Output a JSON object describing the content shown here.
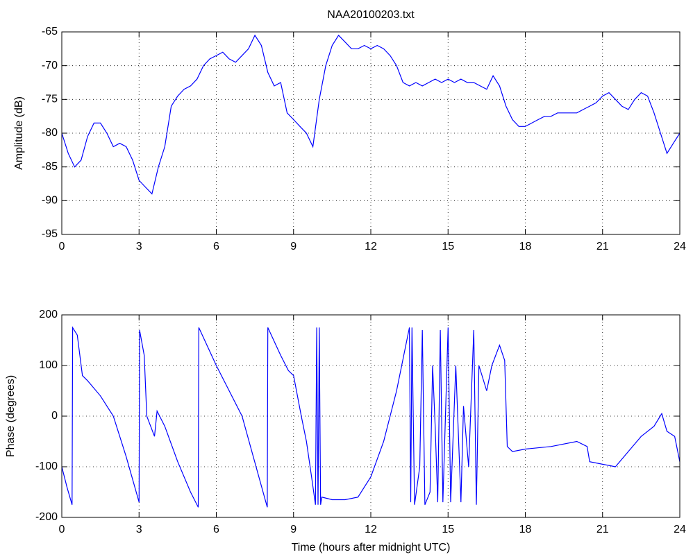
{
  "chart_data": [
    {
      "type": "line",
      "title": "NAA20100203.txt",
      "ylabel": "Amplitude (dB)",
      "color": "#0000ff",
      "grid": true,
      "x": [
        0,
        0.25,
        0.5,
        0.75,
        1,
        1.25,
        1.5,
        1.75,
        2,
        2.25,
        2.5,
        2.75,
        3,
        3.25,
        3.5,
        3.75,
        4,
        4.25,
        4.5,
        4.75,
        5,
        5.25,
        5.5,
        5.75,
        6,
        6.25,
        6.5,
        6.75,
        7,
        7.25,
        7.5,
        7.75,
        8,
        8.25,
        8.5,
        8.75,
        9,
        9.25,
        9.5,
        9.75,
        10,
        10.25,
        10.5,
        10.75,
        11,
        11.25,
        11.5,
        11.75,
        12,
        12.25,
        12.5,
        12.75,
        13,
        13.25,
        13.5,
        13.75,
        14,
        14.25,
        14.5,
        14.75,
        15,
        15.25,
        15.5,
        15.75,
        16,
        16.25,
        16.5,
        16.75,
        17,
        17.25,
        17.5,
        17.75,
        18,
        18.25,
        18.5,
        18.75,
        19,
        19.25,
        19.5,
        19.75,
        20,
        20.25,
        20.5,
        20.75,
        21,
        21.25,
        21.5,
        21.75,
        22,
        22.25,
        22.5,
        22.75,
        23,
        23.25,
        23.5,
        23.75,
        24
      ],
      "values": [
        -80,
        -83,
        -85,
        -84,
        -80.5,
        -78.5,
        -78.5,
        -80,
        -82,
        -81.5,
        -82,
        -84,
        -87,
        -88,
        -89,
        -85,
        -82,
        -76,
        -74.5,
        -73.5,
        -73,
        -72,
        -70,
        -69,
        -68.5,
        -68,
        -69,
        -69.5,
        -68.5,
        -67.5,
        -65.5,
        -67,
        -71,
        -73,
        -72.5,
        -77,
        -78,
        -79,
        -80,
        -82,
        -75,
        -70,
        -67,
        -65.5,
        -66.5,
        -67.5,
        -67.5,
        -67,
        -67.5,
        -67,
        -67.5,
        -68.5,
        -70,
        -72.5,
        -73,
        -72.5,
        -73,
        -72.5,
        -72,
        -72.5,
        -72,
        -72.5,
        -72,
        -72.5,
        -72.5,
        -73,
        -73.5,
        -71.5,
        -73,
        -76,
        -78,
        -79,
        -79,
        -78.5,
        -78,
        -77.5,
        -77.5,
        -77,
        -77,
        -77,
        -77,
        -76.5,
        -76,
        -75.5,
        -74.5,
        -74,
        -75,
        -76,
        -76.5,
        -75,
        -74,
        -74.5,
        -77,
        -80,
        -83,
        -81.5,
        -80
      ],
      "xlim": [
        0,
        24
      ],
      "xticks": [
        0,
        3,
        6,
        9,
        12,
        15,
        18,
        21,
        24
      ],
      "ylim": [
        -95,
        -65
      ],
      "yticks": [
        -95,
        -90,
        -85,
        -80,
        -75,
        -70,
        -65
      ]
    },
    {
      "type": "line",
      "xlabel": "Time (hours after midnight UTC)",
      "ylabel": "Phase (degrees)",
      "color": "#0000ff",
      "grid": true,
      "x": [
        0,
        0.2,
        0.4,
        0.42,
        0.6,
        0.8,
        1,
        1.5,
        2,
        2.5,
        3.0,
        3.02,
        3.2,
        3.3,
        3.6,
        3.7,
        4,
        4.5,
        5,
        5.3,
        5.32,
        6,
        7,
        7.98,
        8.0,
        8.5,
        8.8,
        9,
        9.3,
        9.5,
        9.7,
        9.85,
        9.9,
        9.95,
        10,
        10.05,
        10.1,
        10.5,
        11,
        11.5,
        12,
        12.5,
        13,
        13.4,
        13.5,
        13.55,
        13.6,
        13.7,
        13.9,
        14,
        14.1,
        14.3,
        14.4,
        14.5,
        14.6,
        14.7,
        14.8,
        15,
        15.1,
        15.3,
        15.5,
        15.6,
        15.8,
        16,
        16.1,
        16.2,
        16.5,
        16.7,
        17,
        17.2,
        17.3,
        17.5,
        18,
        19,
        20,
        20.4,
        20.5,
        21,
        21.5,
        22,
        22.5,
        23,
        23.3,
        23.5,
        23.8,
        24
      ],
      "values": [
        -100,
        -140,
        -175,
        175,
        160,
        80,
        70,
        40,
        0,
        -80,
        -170,
        170,
        120,
        0,
        -40,
        10,
        -20,
        -90,
        -150,
        -180,
        175,
        100,
        0,
        -180,
        175,
        120,
        90,
        80,
        0,
        -50,
        -120,
        -175,
        175,
        -175,
        175,
        -175,
        -160,
        -165,
        -165,
        -160,
        -120,
        -50,
        50,
        150,
        175,
        -170,
        175,
        -175,
        -100,
        170,
        -175,
        -150,
        100,
        -20,
        -170,
        170,
        -170,
        175,
        -170,
        100,
        -170,
        20,
        -100,
        170,
        -175,
        100,
        50,
        100,
        140,
        110,
        -60,
        -70,
        -65,
        -60,
        -50,
        -60,
        -90,
        -95,
        -100,
        -70,
        -40,
        -20,
        5,
        -30,
        -40,
        -90
      ],
      "xlim": [
        0,
        24
      ],
      "xticks": [
        0,
        3,
        6,
        9,
        12,
        15,
        18,
        21,
        24
      ],
      "ylim": [
        -200,
        200
      ],
      "yticks": [
        -200,
        -100,
        0,
        100,
        200
      ]
    }
  ]
}
